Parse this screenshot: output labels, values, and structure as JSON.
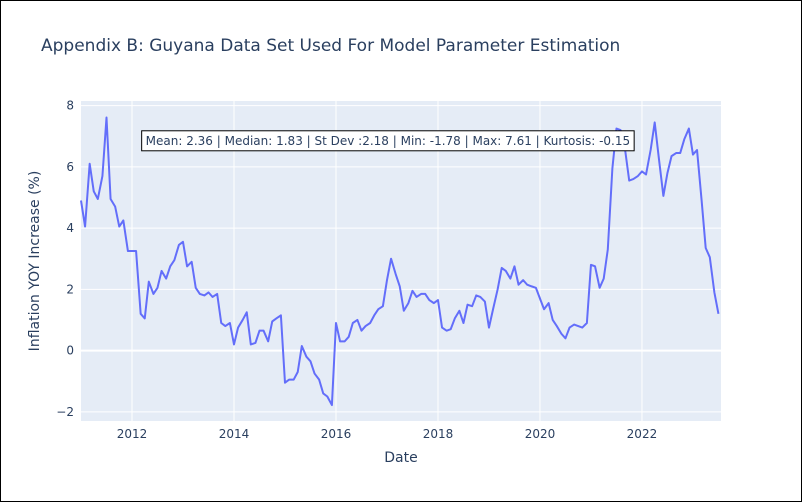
{
  "chart_data": {
    "type": "line",
    "title": "Appendix B: Guyana Data Set Used For Model Parameter Estimation",
    "xlabel": "Date",
    "ylabel": "Inflation YOY Increase (%)",
    "xlim": [
      2011.0,
      2023.55
    ],
    "ylim": [
      -2.3,
      8.15
    ],
    "grid": true,
    "x_ticks": [
      {
        "value": 2012,
        "label": "2012"
      },
      {
        "value": 2014,
        "label": "2014"
      },
      {
        "value": 2016,
        "label": "2016"
      },
      {
        "value": 2018,
        "label": "2018"
      },
      {
        "value": 2020,
        "label": "2020"
      },
      {
        "value": 2022,
        "label": "2022"
      }
    ],
    "y_ticks": [
      {
        "value": -2,
        "label": "−2"
      },
      {
        "value": 0,
        "label": "0"
      },
      {
        "value": 2,
        "label": "2"
      },
      {
        "value": 4,
        "label": "4"
      },
      {
        "value": 6,
        "label": "6"
      },
      {
        "value": 8,
        "label": "8"
      }
    ],
    "annotation": {
      "text": "Mean: 2.36 | Median: 1.83 | St Dev :2.18 | Min: -1.78 | Max: 7.61 | Kurtosis: -0.15",
      "anchor_x": 2012.17,
      "anchor_y": 6.72
    },
    "series": [
      {
        "color": "#636efa",
        "points": [
          [
            2011.0,
            4.9
          ],
          [
            2011.08,
            4.05
          ],
          [
            2011.17,
            6.1
          ],
          [
            2011.25,
            5.2
          ],
          [
            2011.33,
            4.95
          ],
          [
            2011.42,
            5.7
          ],
          [
            2011.5,
            7.61
          ],
          [
            2011.58,
            4.95
          ],
          [
            2011.67,
            4.7
          ],
          [
            2011.75,
            4.05
          ],
          [
            2011.83,
            4.25
          ],
          [
            2011.92,
            3.25
          ],
          [
            2012.0,
            3.25
          ],
          [
            2012.08,
            3.25
          ],
          [
            2012.17,
            1.2
          ],
          [
            2012.25,
            1.05
          ],
          [
            2012.33,
            2.25
          ],
          [
            2012.42,
            1.85
          ],
          [
            2012.5,
            2.05
          ],
          [
            2012.58,
            2.6
          ],
          [
            2012.67,
            2.35
          ],
          [
            2012.75,
            2.75
          ],
          [
            2012.83,
            2.95
          ],
          [
            2012.92,
            3.45
          ],
          [
            2013.0,
            3.55
          ],
          [
            2013.08,
            2.75
          ],
          [
            2013.17,
            2.9
          ],
          [
            2013.25,
            2.05
          ],
          [
            2013.33,
            1.85
          ],
          [
            2013.42,
            1.8
          ],
          [
            2013.5,
            1.9
          ],
          [
            2013.58,
            1.75
          ],
          [
            2013.67,
            1.85
          ],
          [
            2013.75,
            0.9
          ],
          [
            2013.83,
            0.8
          ],
          [
            2013.92,
            0.9
          ],
          [
            2014.0,
            0.2
          ],
          [
            2014.08,
            0.75
          ],
          [
            2014.17,
            1.0
          ],
          [
            2014.25,
            1.25
          ],
          [
            2014.33,
            0.2
          ],
          [
            2014.42,
            0.25
          ],
          [
            2014.5,
            0.65
          ],
          [
            2014.58,
            0.65
          ],
          [
            2014.67,
            0.3
          ],
          [
            2014.75,
            0.95
          ],
          [
            2014.83,
            1.05
          ],
          [
            2014.92,
            1.15
          ],
          [
            2015.0,
            -1.05
          ],
          [
            2015.08,
            -0.95
          ],
          [
            2015.17,
            -0.95
          ],
          [
            2015.25,
            -0.7
          ],
          [
            2015.33,
            0.15
          ],
          [
            2015.42,
            -0.2
          ],
          [
            2015.5,
            -0.35
          ],
          [
            2015.58,
            -0.75
          ],
          [
            2015.67,
            -0.95
          ],
          [
            2015.75,
            -1.4
          ],
          [
            2015.83,
            -1.5
          ],
          [
            2015.92,
            -1.78
          ],
          [
            2016.0,
            0.9
          ],
          [
            2016.08,
            0.3
          ],
          [
            2016.17,
            0.3
          ],
          [
            2016.25,
            0.45
          ],
          [
            2016.33,
            0.9
          ],
          [
            2016.42,
            1.0
          ],
          [
            2016.5,
            0.65
          ],
          [
            2016.58,
            0.8
          ],
          [
            2016.67,
            0.9
          ],
          [
            2016.75,
            1.15
          ],
          [
            2016.83,
            1.35
          ],
          [
            2016.92,
            1.45
          ],
          [
            2017.0,
            2.3
          ],
          [
            2017.08,
            3.0
          ],
          [
            2017.17,
            2.5
          ],
          [
            2017.25,
            2.1
          ],
          [
            2017.33,
            1.3
          ],
          [
            2017.42,
            1.55
          ],
          [
            2017.5,
            1.95
          ],
          [
            2017.58,
            1.75
          ],
          [
            2017.67,
            1.85
          ],
          [
            2017.75,
            1.85
          ],
          [
            2017.83,
            1.65
          ],
          [
            2017.92,
            1.55
          ],
          [
            2018.0,
            1.65
          ],
          [
            2018.08,
            0.75
          ],
          [
            2018.17,
            0.65
          ],
          [
            2018.25,
            0.7
          ],
          [
            2018.33,
            1.05
          ],
          [
            2018.42,
            1.3
          ],
          [
            2018.5,
            0.9
          ],
          [
            2018.58,
            1.5
          ],
          [
            2018.67,
            1.45
          ],
          [
            2018.75,
            1.8
          ],
          [
            2018.83,
            1.75
          ],
          [
            2018.92,
            1.6
          ],
          [
            2019.0,
            0.75
          ],
          [
            2019.08,
            1.35
          ],
          [
            2019.17,
            2.0
          ],
          [
            2019.25,
            2.7
          ],
          [
            2019.33,
            2.6
          ],
          [
            2019.42,
            2.35
          ],
          [
            2019.5,
            2.75
          ],
          [
            2019.58,
            2.15
          ],
          [
            2019.67,
            2.3
          ],
          [
            2019.75,
            2.15
          ],
          [
            2019.83,
            2.1
          ],
          [
            2019.92,
            2.05
          ],
          [
            2020.0,
            1.7
          ],
          [
            2020.08,
            1.35
          ],
          [
            2020.17,
            1.55
          ],
          [
            2020.25,
            1.0
          ],
          [
            2020.33,
            0.8
          ],
          [
            2020.42,
            0.55
          ],
          [
            2020.5,
            0.4
          ],
          [
            2020.58,
            0.75
          ],
          [
            2020.67,
            0.85
          ],
          [
            2020.75,
            0.8
          ],
          [
            2020.83,
            0.75
          ],
          [
            2020.92,
            0.9
          ],
          [
            2021.0,
            2.8
          ],
          [
            2021.08,
            2.75
          ],
          [
            2021.17,
            2.05
          ],
          [
            2021.25,
            2.35
          ],
          [
            2021.33,
            3.3
          ],
          [
            2021.42,
            5.95
          ],
          [
            2021.5,
            7.25
          ],
          [
            2021.58,
            7.2
          ],
          [
            2021.67,
            6.55
          ],
          [
            2021.75,
            5.55
          ],
          [
            2021.83,
            5.6
          ],
          [
            2021.92,
            5.7
          ],
          [
            2022.0,
            5.85
          ],
          [
            2022.08,
            5.75
          ],
          [
            2022.17,
            6.55
          ],
          [
            2022.25,
            7.45
          ],
          [
            2022.33,
            6.3
          ],
          [
            2022.42,
            5.05
          ],
          [
            2022.5,
            5.8
          ],
          [
            2022.58,
            6.35
          ],
          [
            2022.67,
            6.45
          ],
          [
            2022.75,
            6.45
          ],
          [
            2022.83,
            6.9
          ],
          [
            2022.92,
            7.25
          ],
          [
            2023.0,
            6.4
          ],
          [
            2023.08,
            6.55
          ],
          [
            2023.17,
            4.9
          ],
          [
            2023.25,
            3.35
          ],
          [
            2023.33,
            3.05
          ],
          [
            2023.42,
            1.9
          ],
          [
            2023.5,
            1.2
          ]
        ]
      }
    ]
  }
}
